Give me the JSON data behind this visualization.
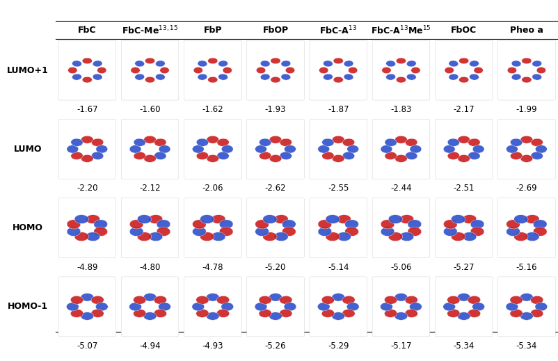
{
  "columns": [
    "FbC",
    "FbC-Me$^{13,15}$",
    "FbP",
    "FbOP",
    "FbC-A$^{13}$",
    "FbC-A$^{13}$Me$^{15}$",
    "FbOC",
    "Pheo a"
  ],
  "row_labels": [
    "LUMO+1",
    "LUMO",
    "HOMO",
    "HOMO-1"
  ],
  "energies": [
    [
      "-1.67",
      "-1.60",
      "-1.62",
      "-1.93",
      "-1.87",
      "-1.83",
      "-2.17",
      "-1.99"
    ],
    [
      "-2.20",
      "-2.12",
      "-2.06",
      "-2.62",
      "-2.55",
      "-2.44",
      "-2.51",
      "-2.69"
    ],
    [
      "-4.89",
      "-4.80",
      "-4.78",
      "-5.20",
      "-5.14",
      "-5.06",
      "-5.27",
      "-5.16"
    ],
    [
      "-5.07",
      "-4.94",
      "-4.93",
      "-5.26",
      "-5.29",
      "-5.17",
      "-5.34",
      "-5.34"
    ]
  ],
  "background_color": "#ffffff",
  "text_color": "#000000",
  "header_fontsize": 9,
  "label_fontsize": 9,
  "energy_fontsize": 8.5,
  "figure_width": 8.02,
  "figure_height": 5.19,
  "dpi": 100
}
